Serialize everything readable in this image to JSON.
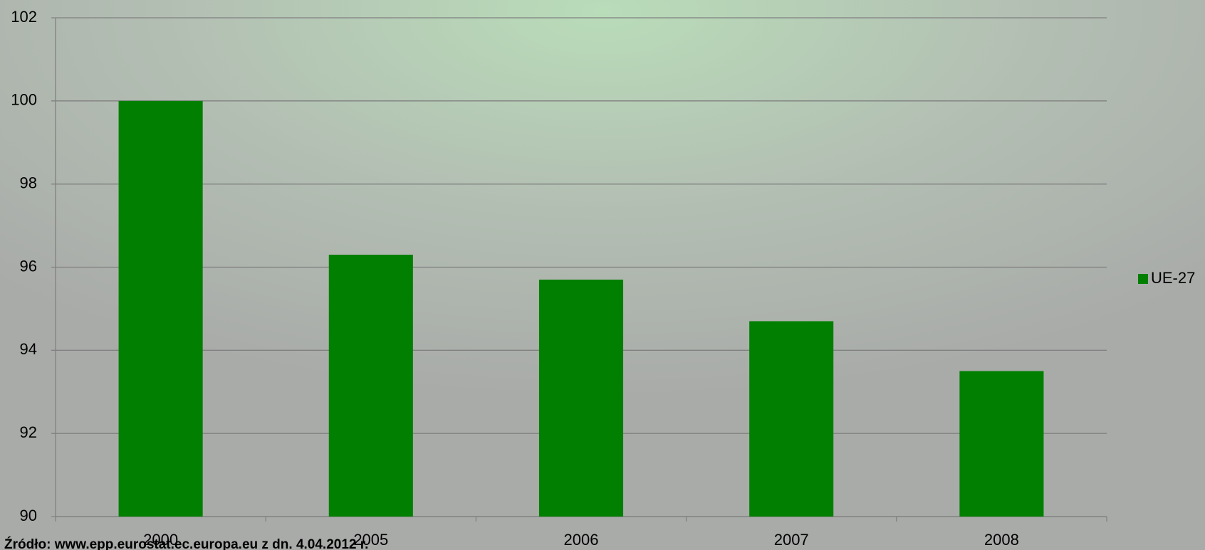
{
  "chart_data": {
    "type": "bar",
    "categories": [
      "2000",
      "2005",
      "2006",
      "2007",
      "2008"
    ],
    "series": [
      {
        "name": "UE-27",
        "color": "#007f00",
        "values": [
          100,
          96.3,
          95.7,
          94.7,
          93.5
        ]
      }
    ],
    "ylim": [
      90,
      102
    ],
    "yticks": [
      90,
      92,
      94,
      96,
      98,
      100,
      102
    ],
    "grid": true,
    "legend": "right",
    "source": "Źródło: www.epp.eurostat.ec.europa.eu z dn. 4.04.2012 r."
  }
}
